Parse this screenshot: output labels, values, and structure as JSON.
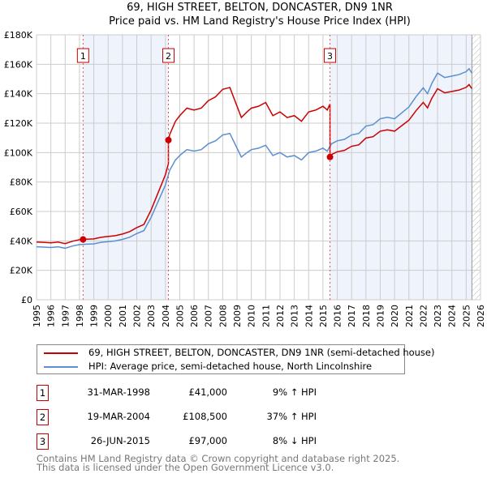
{
  "chart_data": {
    "type": "line",
    "title": "69, HIGH STREET, BELTON, DONCASTER, DN9 1NR",
    "subtitle": "Price paid vs. HM Land Registry's House Price Index (HPI)",
    "xlim": [
      1995,
      2026
    ],
    "ylim": [
      0,
      180000
    ],
    "x_ticks": [
      "1995",
      "1996",
      "1997",
      "1998",
      "1999",
      "2000",
      "2001",
      "2002",
      "2003",
      "2004",
      "2005",
      "2006",
      "2007",
      "2008",
      "2009",
      "2010",
      "2011",
      "2012",
      "2013",
      "2014",
      "2015",
      "2016",
      "2017",
      "2018",
      "2019",
      "2020",
      "2021",
      "2022",
      "2023",
      "2024",
      "2025",
      "2026"
    ],
    "y_ticks": [
      {
        "v": 0,
        "label": "£0"
      },
      {
        "v": 20000,
        "label": "£20K"
      },
      {
        "v": 40000,
        "label": "£40K"
      },
      {
        "v": 60000,
        "label": "£60K"
      },
      {
        "v": 80000,
        "label": "£80K"
      },
      {
        "v": 100000,
        "label": "£100K"
      },
      {
        "v": 120000,
        "label": "£120K"
      },
      {
        "v": 140000,
        "label": "£140K"
      },
      {
        "v": 160000,
        "label": "£160K"
      },
      {
        "v": 180000,
        "label": "£180K"
      }
    ],
    "grid": true,
    "data_end": 2025.4,
    "series": [
      {
        "name": "69, HIGH STREET, BELTON, DONCASTER, DN9 1NR (semi-detached house)",
        "color": "#cc0000"
      },
      {
        "name": "HPI: Average price, semi-detached house, North Lincolnshire",
        "color": "#5b8fd0",
        "x": [
          1995,
          1995.5,
          1996,
          1996.5,
          1997,
          1997.5,
          1998,
          1998.5,
          1999,
          1999.5,
          2000,
          2000.5,
          2001,
          2001.5,
          2002,
          2002.5,
          2003,
          2003.5,
          2004,
          2004.3,
          2004.7,
          2005,
          2005.5,
          2006,
          2006.5,
          2007,
          2007.5,
          2008,
          2008.5,
          2009,
          2009.3,
          2009.7,
          2010,
          2010.5,
          2011,
          2011.5,
          2012,
          2012.5,
          2013,
          2013.5,
          2014,
          2014.5,
          2015,
          2015.3,
          2015.6,
          2016,
          2016.5,
          2017,
          2017.5,
          2018,
          2018.5,
          2019,
          2019.5,
          2020,
          2020.5,
          2021,
          2021.5,
          2022,
          2022.3,
          2022.6,
          2023,
          2023.5,
          2024,
          2024.5,
          2025,
          2025.2,
          2025.4
        ],
        "y": [
          36000,
          35800,
          35500,
          36000,
          35000,
          36500,
          37500,
          37800,
          38000,
          39000,
          39500,
          40000,
          41000,
          42500,
          45000,
          47000,
          56000,
          67000,
          78000,
          88000,
          95000,
          98000,
          102000,
          101000,
          102000,
          106000,
          108000,
          112000,
          113000,
          103000,
          97000,
          100000,
          102000,
          103000,
          105000,
          98000,
          100000,
          97000,
          98000,
          95000,
          100000,
          101000,
          103000,
          101000,
          106000,
          108000,
          109000,
          112000,
          113000,
          118000,
          119000,
          123000,
          124000,
          123000,
          127000,
          131000,
          138000,
          144000,
          140000,
          147000,
          154000,
          151000,
          152000,
          153000,
          155000,
          157000,
          154000
        ]
      }
    ],
    "sales": [
      {
        "n": "1",
        "x": 1998.25,
        "date": "31-MAR-1998",
        "price": 41000,
        "price_label": "£41,000",
        "hpi": "9% ↑ HPI"
      },
      {
        "n": "2",
        "x": 2004.21,
        "date": "19-MAR-2004",
        "price": 108500,
        "price_label": "£108,500",
        "hpi": "37% ↑ HPI"
      },
      {
        "n": "3",
        "x": 2015.49,
        "date": "26-JUN-2015",
        "price": 97000,
        "price_label": "£97,000",
        "hpi": "8% ↓ HPI"
      }
    ]
  },
  "footer": {
    "line1": "Contains HM Land Registry data © Crown copyright and database right 2025.",
    "line2": "This data is licensed under the Open Government Licence v3.0."
  }
}
